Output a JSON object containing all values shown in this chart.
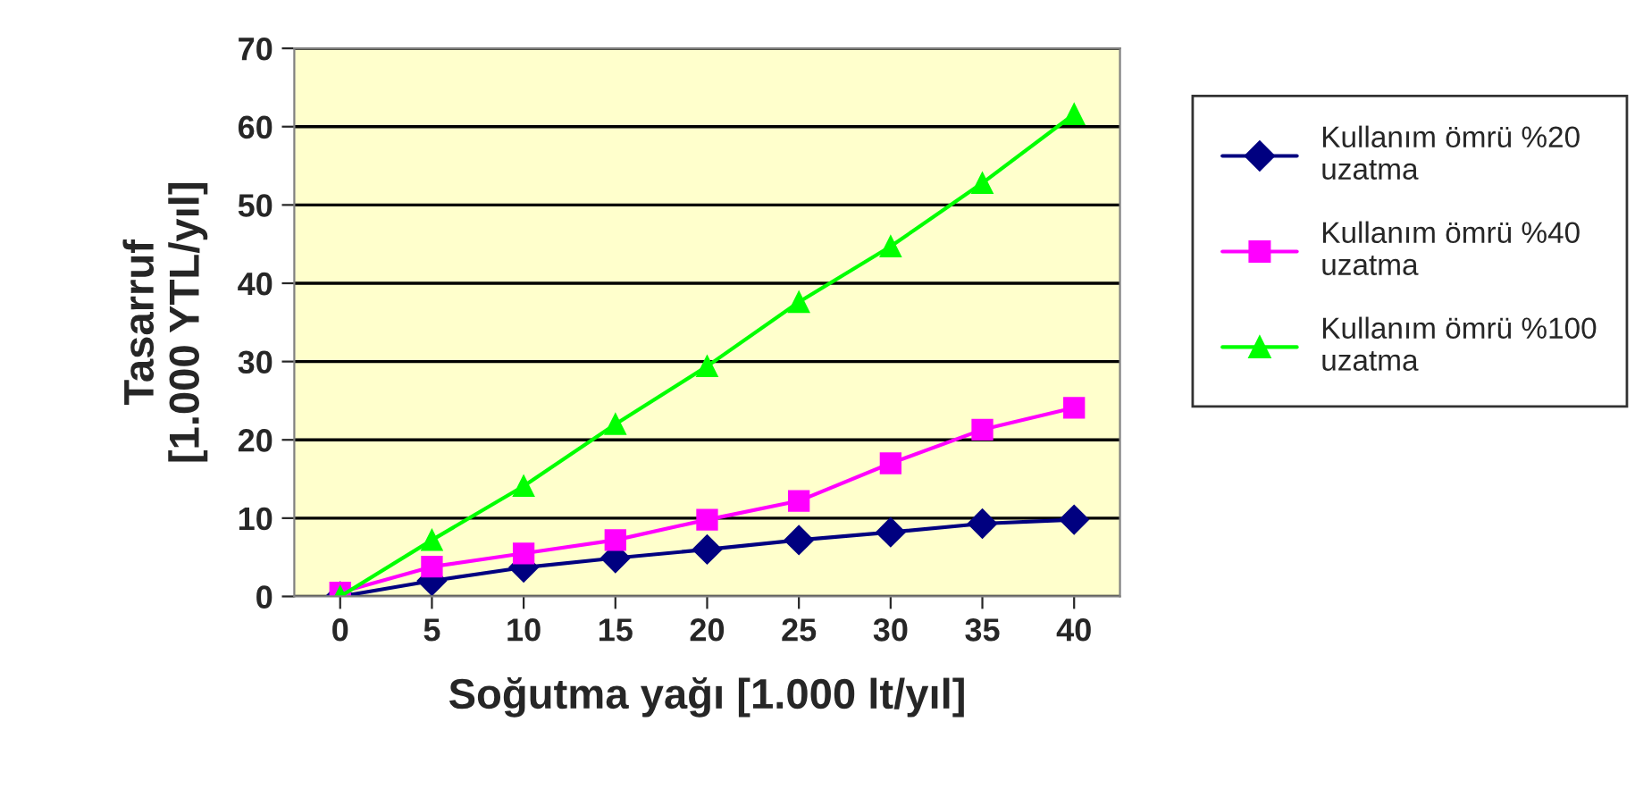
{
  "chart_data": {
    "type": "line",
    "xlabel": "Soğutma yağı [1.000 lt/yıl]",
    "ylabel": "Tasarruf\n[1.000 YTL/yıl]",
    "categories": [
      "0",
      "5",
      "10",
      "15",
      "20",
      "25",
      "30",
      "35",
      "40"
    ],
    "series": [
      {
        "name": "Kullanım ömrü %20\nuzatma",
        "color": "#000080",
        "marker": "diamond",
        "values": [
          0,
          2,
          3.7,
          4.9,
          6,
          7.2,
          8.2,
          9.3,
          9.8
        ]
      },
      {
        "name": "Kullanım ömrü %40\nuzatma",
        "color": "#ff00ff",
        "marker": "square",
        "values": [
          0.5,
          3.8,
          5.5,
          7.2,
          9.8,
          12.2,
          17,
          21.3,
          24.1
        ]
      },
      {
        "name": "Kullanım ömrü %100\nuzatma",
        "color": "#00ff00",
        "marker": "triangle",
        "values": [
          0,
          7.2,
          14.1,
          22,
          29.4,
          37.6,
          44.7,
          52.8,
          61.6
        ]
      }
    ],
    "ylim": [
      0,
      70
    ],
    "yticks": [
      0,
      10,
      20,
      30,
      40,
      50,
      60,
      70
    ],
    "grid": "y",
    "legend": "right",
    "line_style": "solid"
  }
}
